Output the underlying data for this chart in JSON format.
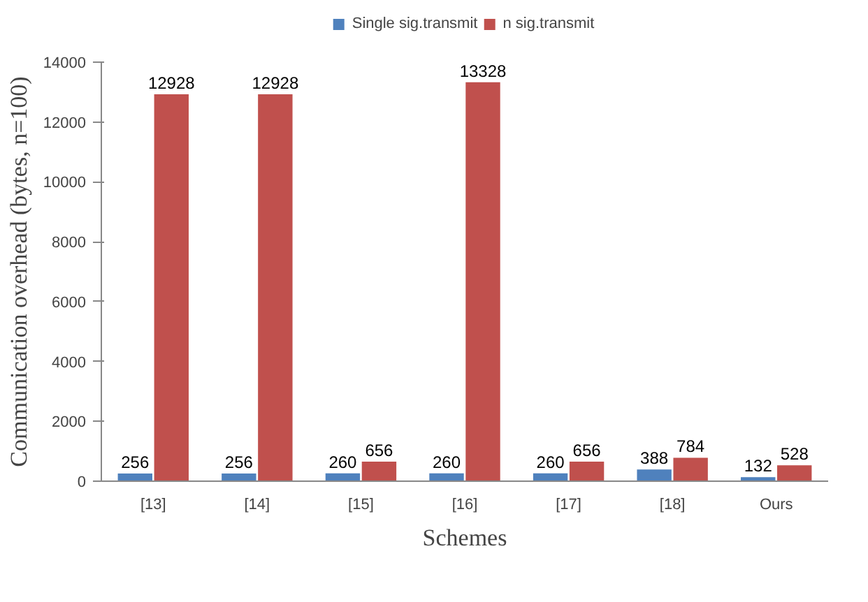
{
  "chart_data": {
    "type": "bar",
    "xlabel": "Schemes",
    "ylabel": "Communication overhead (bytes, n=100)",
    "categories": [
      "[13]",
      "[14]",
      "[15]",
      "[16]",
      "[17]",
      "[18]",
      "Ours"
    ],
    "series": [
      {
        "name": "Single sig.transmit",
        "color": "#4f81bd",
        "values": [
          256,
          256,
          260,
          260,
          260,
          388,
          132
        ]
      },
      {
        "name": "n sig.transmit",
        "color": "#c0504d",
        "values": [
          12928,
          12928,
          656,
          13328,
          656,
          784,
          528
        ]
      }
    ],
    "ylim": [
      0,
      14000
    ],
    "yticks": [
      0,
      2000,
      4000,
      6000,
      8000,
      10000,
      12000,
      14000
    ],
    "data_labels": true,
    "legend": "top",
    "grid": false
  }
}
